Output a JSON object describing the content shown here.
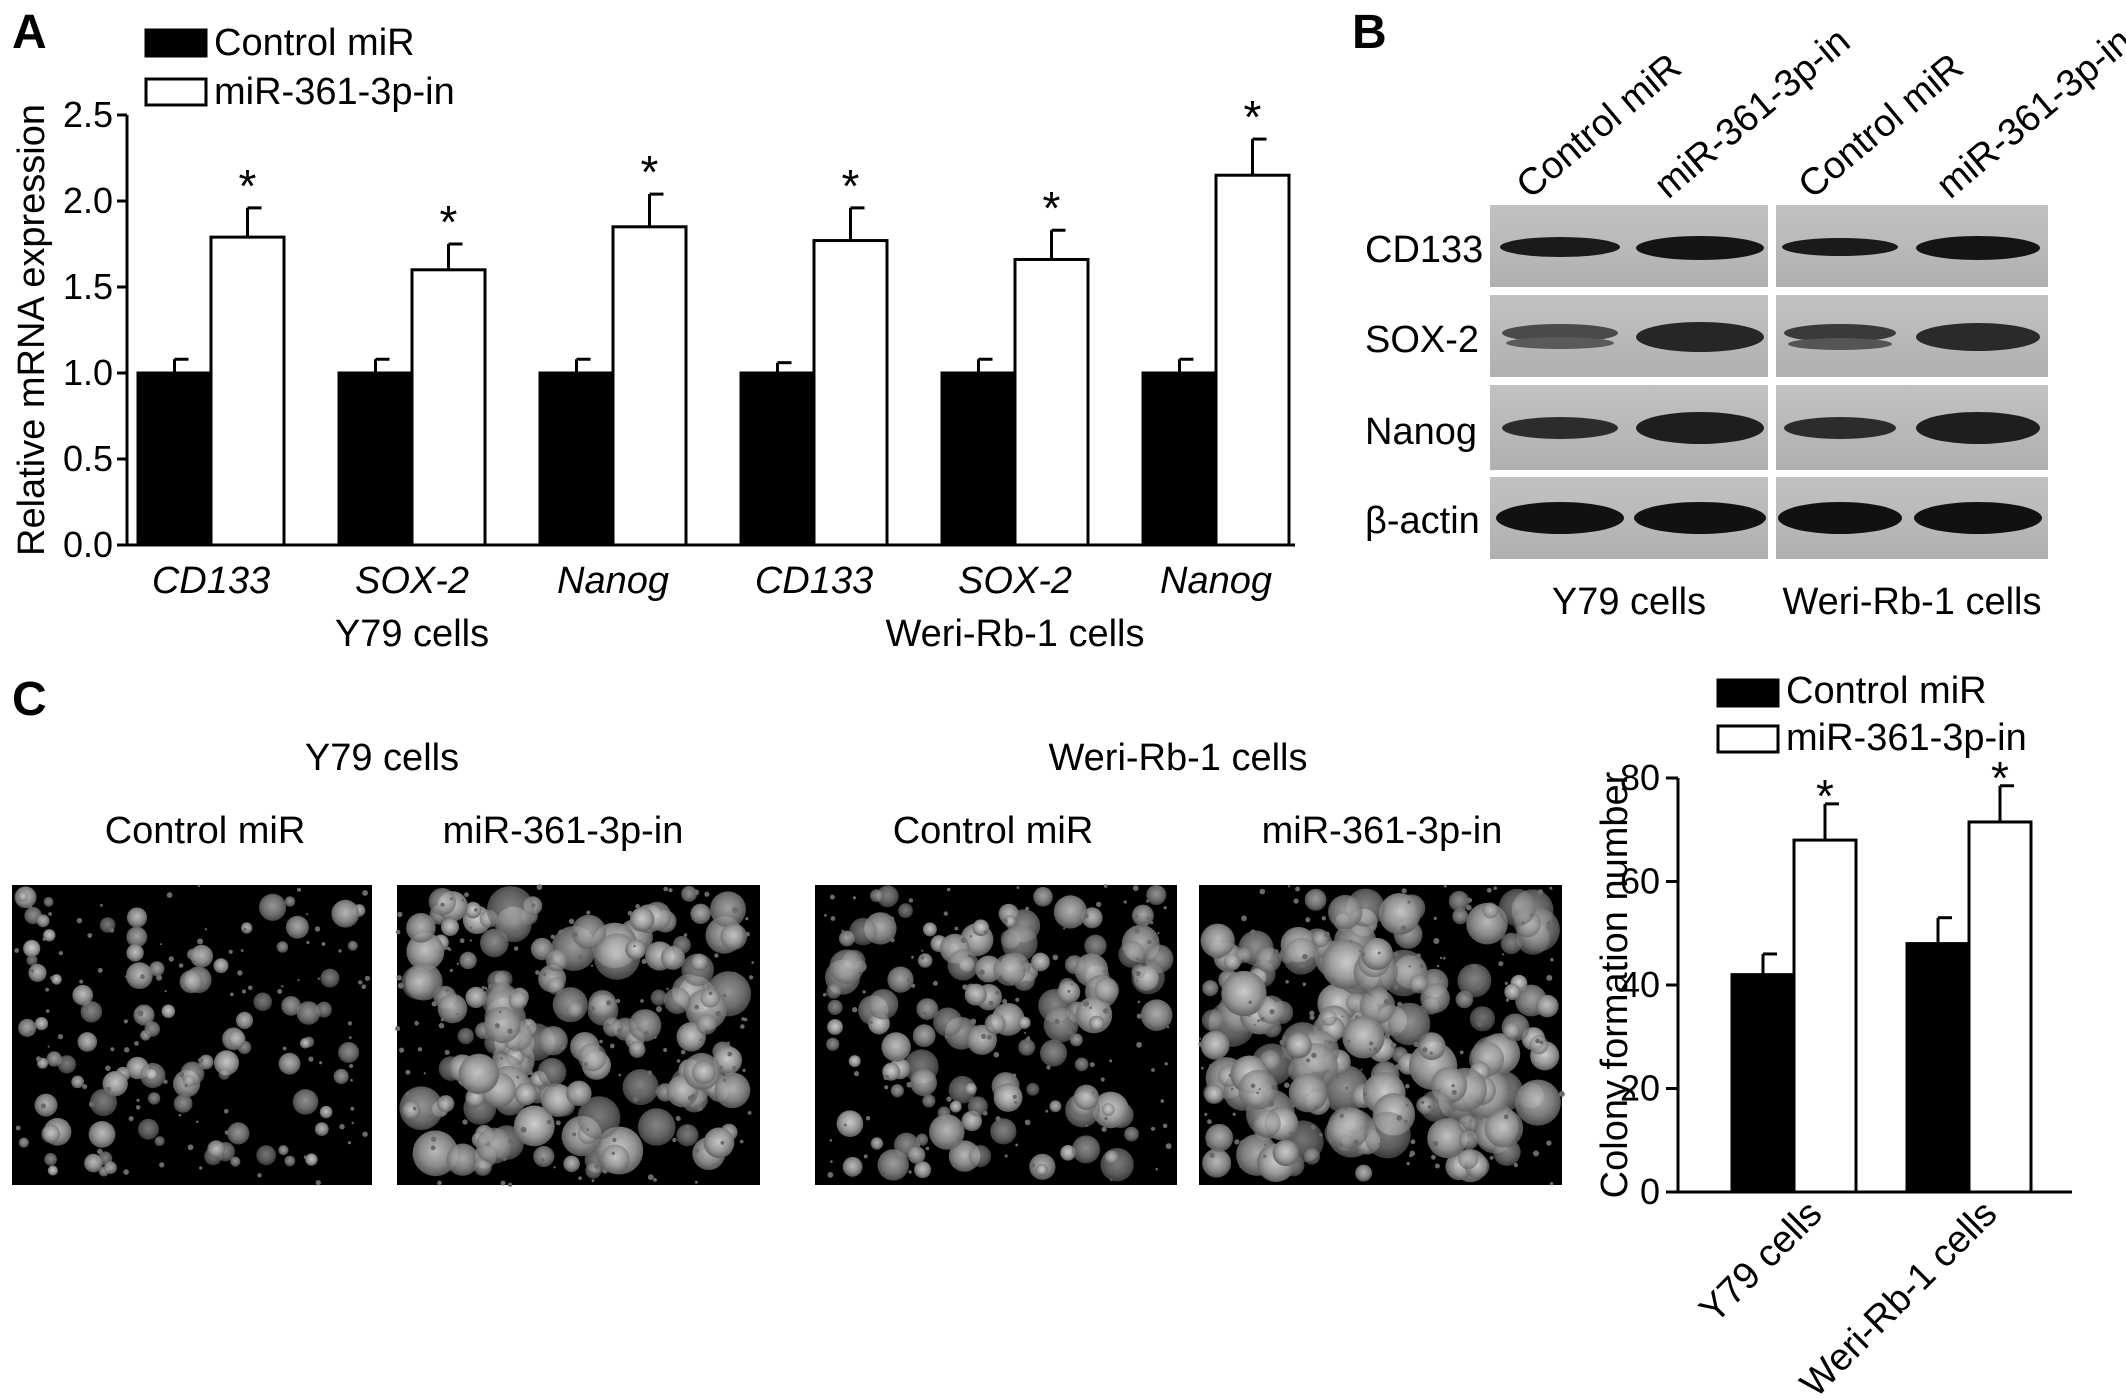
{
  "panels": {
    "a": {
      "letter": "A"
    },
    "b": {
      "letter": "B"
    },
    "c": {
      "letter": "C"
    }
  },
  "chart_data": [
    {
      "id": "A",
      "type": "bar",
      "ylabel": "Relative mRNA expression",
      "ylim": [
        0,
        2.5
      ],
      "yticks": [
        "0.0",
        "0.5",
        "1.0",
        "1.5",
        "2.0",
        "2.5"
      ],
      "categories": [
        "CD133",
        "SOX-2",
        "Nanog",
        "CD133",
        "SOX-2",
        "Nanog"
      ],
      "groups": [
        {
          "label": "Y79 cells",
          "span": [
            0,
            2
          ]
        },
        {
          "label": "Weri-Rb-1 cells",
          "span": [
            3,
            5
          ]
        }
      ],
      "series": [
        {
          "name": "Control miR",
          "color": "#000000",
          "values": [
            1.0,
            1.0,
            1.0,
            1.0,
            1.0,
            1.0
          ],
          "errors": [
            0.08,
            0.08,
            0.08,
            0.06,
            0.08,
            0.08
          ]
        },
        {
          "name": "miR-361-3p-in",
          "color": "#ffffff",
          "values": [
            1.79,
            1.6,
            1.85,
            1.77,
            1.66,
            2.15
          ],
          "errors": [
            0.17,
            0.15,
            0.19,
            0.19,
            0.17,
            0.21
          ]
        }
      ],
      "significance": [
        "*",
        "*",
        "*",
        "*",
        "*",
        "*"
      ],
      "legend_position": "top-left"
    },
    {
      "id": "C",
      "type": "bar",
      "ylabel": "Colony formation number",
      "ylim": [
        0,
        80
      ],
      "yticks": [
        "0",
        "20",
        "40",
        "60",
        "80"
      ],
      "categories": [
        "Y79 cells",
        "Weri-Rb-1 cells"
      ],
      "series": [
        {
          "name": "Control miR",
          "color": "#000000",
          "values": [
            42,
            48
          ],
          "errors": [
            4,
            5
          ]
        },
        {
          "name": "miR-361-3p-in",
          "color": "#ffffff",
          "values": [
            68,
            71.5
          ],
          "errors": [
            7,
            7
          ]
        }
      ],
      "significance": [
        "*",
        "*"
      ],
      "legend_position": "top"
    }
  ],
  "blot": {
    "lanes": [
      "Control miR",
      "miR-361-3p-in",
      "Control miR",
      "miR-361-3p-in"
    ],
    "rows": [
      "CD133",
      "SOX-2",
      "Nanog",
      "β-actin"
    ],
    "groups": [
      "Y79 cells",
      "Weri-Rb-1 cells"
    ]
  },
  "colony": {
    "groups": [
      {
        "title": "Y79 cells",
        "conditions": [
          "Control miR",
          "miR-361-3p-in"
        ]
      },
      {
        "title": "Weri-Rb-1 cells",
        "conditions": [
          "Control miR",
          "miR-361-3p-in"
        ]
      }
    ]
  }
}
